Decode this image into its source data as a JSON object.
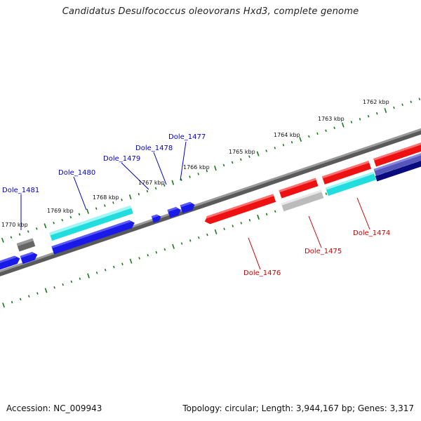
{
  "title": "Candidatus Desulfococcus oleovorans Hxd3, complete genome",
  "footer": {
    "accession": "Accession: NC_009943",
    "topology": "Topology: circular; Length: 3,944,167 bp; Genes: 3,317"
  },
  "colors": {
    "background": "#ffffff",
    "backbone": "#888888",
    "ticks": "#1a7a1a",
    "label_forward": "#0000cc",
    "label_reverse": "#cc0000",
    "cyan": "#22dddd",
    "blue": "#1a1ae8",
    "red": "#ee1111",
    "gray": "#bbbbbb",
    "darkgray": "#666666",
    "navy": "#0b0b80",
    "slate": "#5555bb"
  },
  "ruler_labels": [
    "1762 kbp",
    "1763 kbp",
    "1764 kbp",
    "1765 kbp",
    "1766 kbp",
    "1767 kbp",
    "1768 kbp",
    "1769 kbp",
    "1770 kbp"
  ],
  "gene_labels": {
    "forward": [
      "Dole_1481",
      "Dole_1480",
      "Dole_1479",
      "Dole_1478",
      "Dole_1477"
    ],
    "reverse": [
      "Dole_1476",
      "Dole_1475",
      "Dole_1474"
    ]
  }
}
